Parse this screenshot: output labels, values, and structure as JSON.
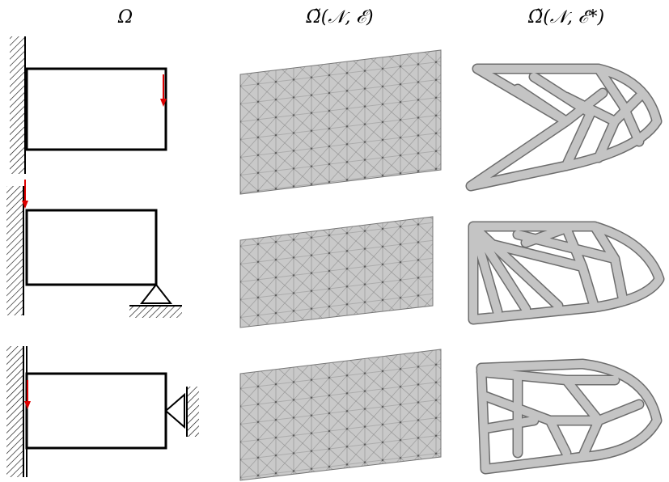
{
  "headers": [
    "Ω",
    "Ω̃(𝒩, ℰ)",
    "Ω̃(𝒩, ℰ*)"
  ]
}
